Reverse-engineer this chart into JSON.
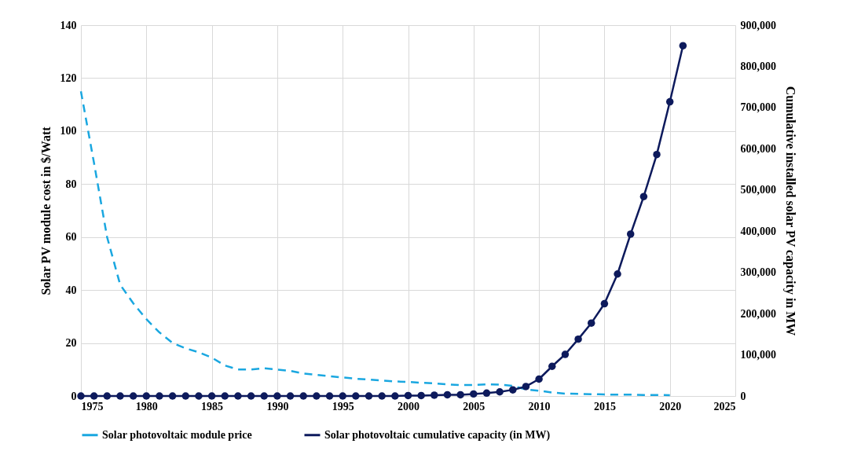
{
  "chart_data": {
    "type": "line",
    "ylabel": "Solar PV module cost in $/Watt",
    "y2label": "Cumulative installed solar PV capacity in MW",
    "xlim": [
      1975,
      2025
    ],
    "xticks": [
      1975,
      1980,
      1985,
      1990,
      1995,
      2000,
      2005,
      2010,
      2015,
      2020,
      2025
    ],
    "ylim": [
      0,
      140
    ],
    "yticks": [
      0,
      20,
      40,
      60,
      80,
      100,
      120,
      140
    ],
    "y2lim": [
      0,
      900000
    ],
    "y2ticks": [
      {
        "value": 0,
        "label": "0"
      },
      {
        "value": 100000,
        "label": "100,000"
      },
      {
        "value": 200000,
        "label": "200,000"
      },
      {
        "value": 300000,
        "label": "300,000"
      },
      {
        "value": 400000,
        "label": "400,000"
      },
      {
        "value": 500000,
        "label": "500,000"
      },
      {
        "value": 600000,
        "label": "600,000"
      },
      {
        "value": 700000,
        "label": "700,000"
      },
      {
        "value": 800000,
        "label": "800,000"
      },
      {
        "value": 900000,
        "label": "900,000"
      }
    ],
    "grid": true,
    "legend": "bottom",
    "series": [
      {
        "name": "Solar photovoltaic module price",
        "color": "#1aa7e0",
        "line_style": "dashed",
        "marker": "none",
        "x": [
          1975,
          1976,
          1977,
          1978,
          1979,
          1980,
          1981,
          1982,
          1983,
          1984,
          1985,
          1986,
          1987,
          1988,
          1989,
          1990,
          1991,
          1992,
          1993,
          1994,
          1995,
          1996,
          1997,
          1998,
          1999,
          2000,
          2001,
          2002,
          2003,
          2004,
          2005,
          2006,
          2007,
          2008,
          2009,
          2010,
          2011,
          2012,
          2013,
          2014,
          2015,
          2016,
          2017,
          2018,
          2019,
          2020
        ],
        "values": [
          115,
          88,
          60,
          42,
          35,
          29,
          24,
          20,
          18,
          16.5,
          14.5,
          11.5,
          10,
          10,
          10.5,
          10,
          9.5,
          8.5,
          8,
          7.5,
          7,
          6.5,
          6.2,
          5.8,
          5.5,
          5.3,
          5,
          4.8,
          4.4,
          4.1,
          4.2,
          4.4,
          4.3,
          3.8,
          2.5,
          2,
          1.3,
          0.9,
          0.8,
          0.7,
          0.6,
          0.5,
          0.5,
          0.4,
          0.4,
          0.3
        ]
      },
      {
        "name": "Solar photovoltaic cumulative capacity (in MW)",
        "color": "#0d1a5c",
        "line_style": "solid",
        "marker": "circle",
        "axis": "y2",
        "x": [
          1975,
          1976,
          1977,
          1978,
          1979,
          1980,
          1981,
          1982,
          1983,
          1984,
          1985,
          1986,
          1987,
          1988,
          1989,
          1990,
          1991,
          1992,
          1993,
          1994,
          1995,
          1996,
          1997,
          1998,
          1999,
          2000,
          2001,
          2002,
          2003,
          2004,
          2005,
          2006,
          2007,
          2008,
          2009,
          2010,
          2011,
          2012,
          2013,
          2014,
          2015,
          2016,
          2017,
          2018,
          2019,
          2020,
          2021
        ],
        "values": [
          0,
          0,
          0,
          0,
          0,
          0,
          0,
          0,
          0,
          0,
          0,
          0,
          0,
          0,
          0,
          0,
          0,
          0,
          0,
          0,
          0,
          0,
          0,
          0,
          0,
          1000,
          1000,
          2000,
          3000,
          3000,
          5000,
          7000,
          10000,
          15000,
          23000,
          41000,
          72000,
          101000,
          138000,
          177000,
          224000,
          296000,
          393000,
          484000,
          586000,
          714000,
          850000
        ]
      }
    ]
  }
}
